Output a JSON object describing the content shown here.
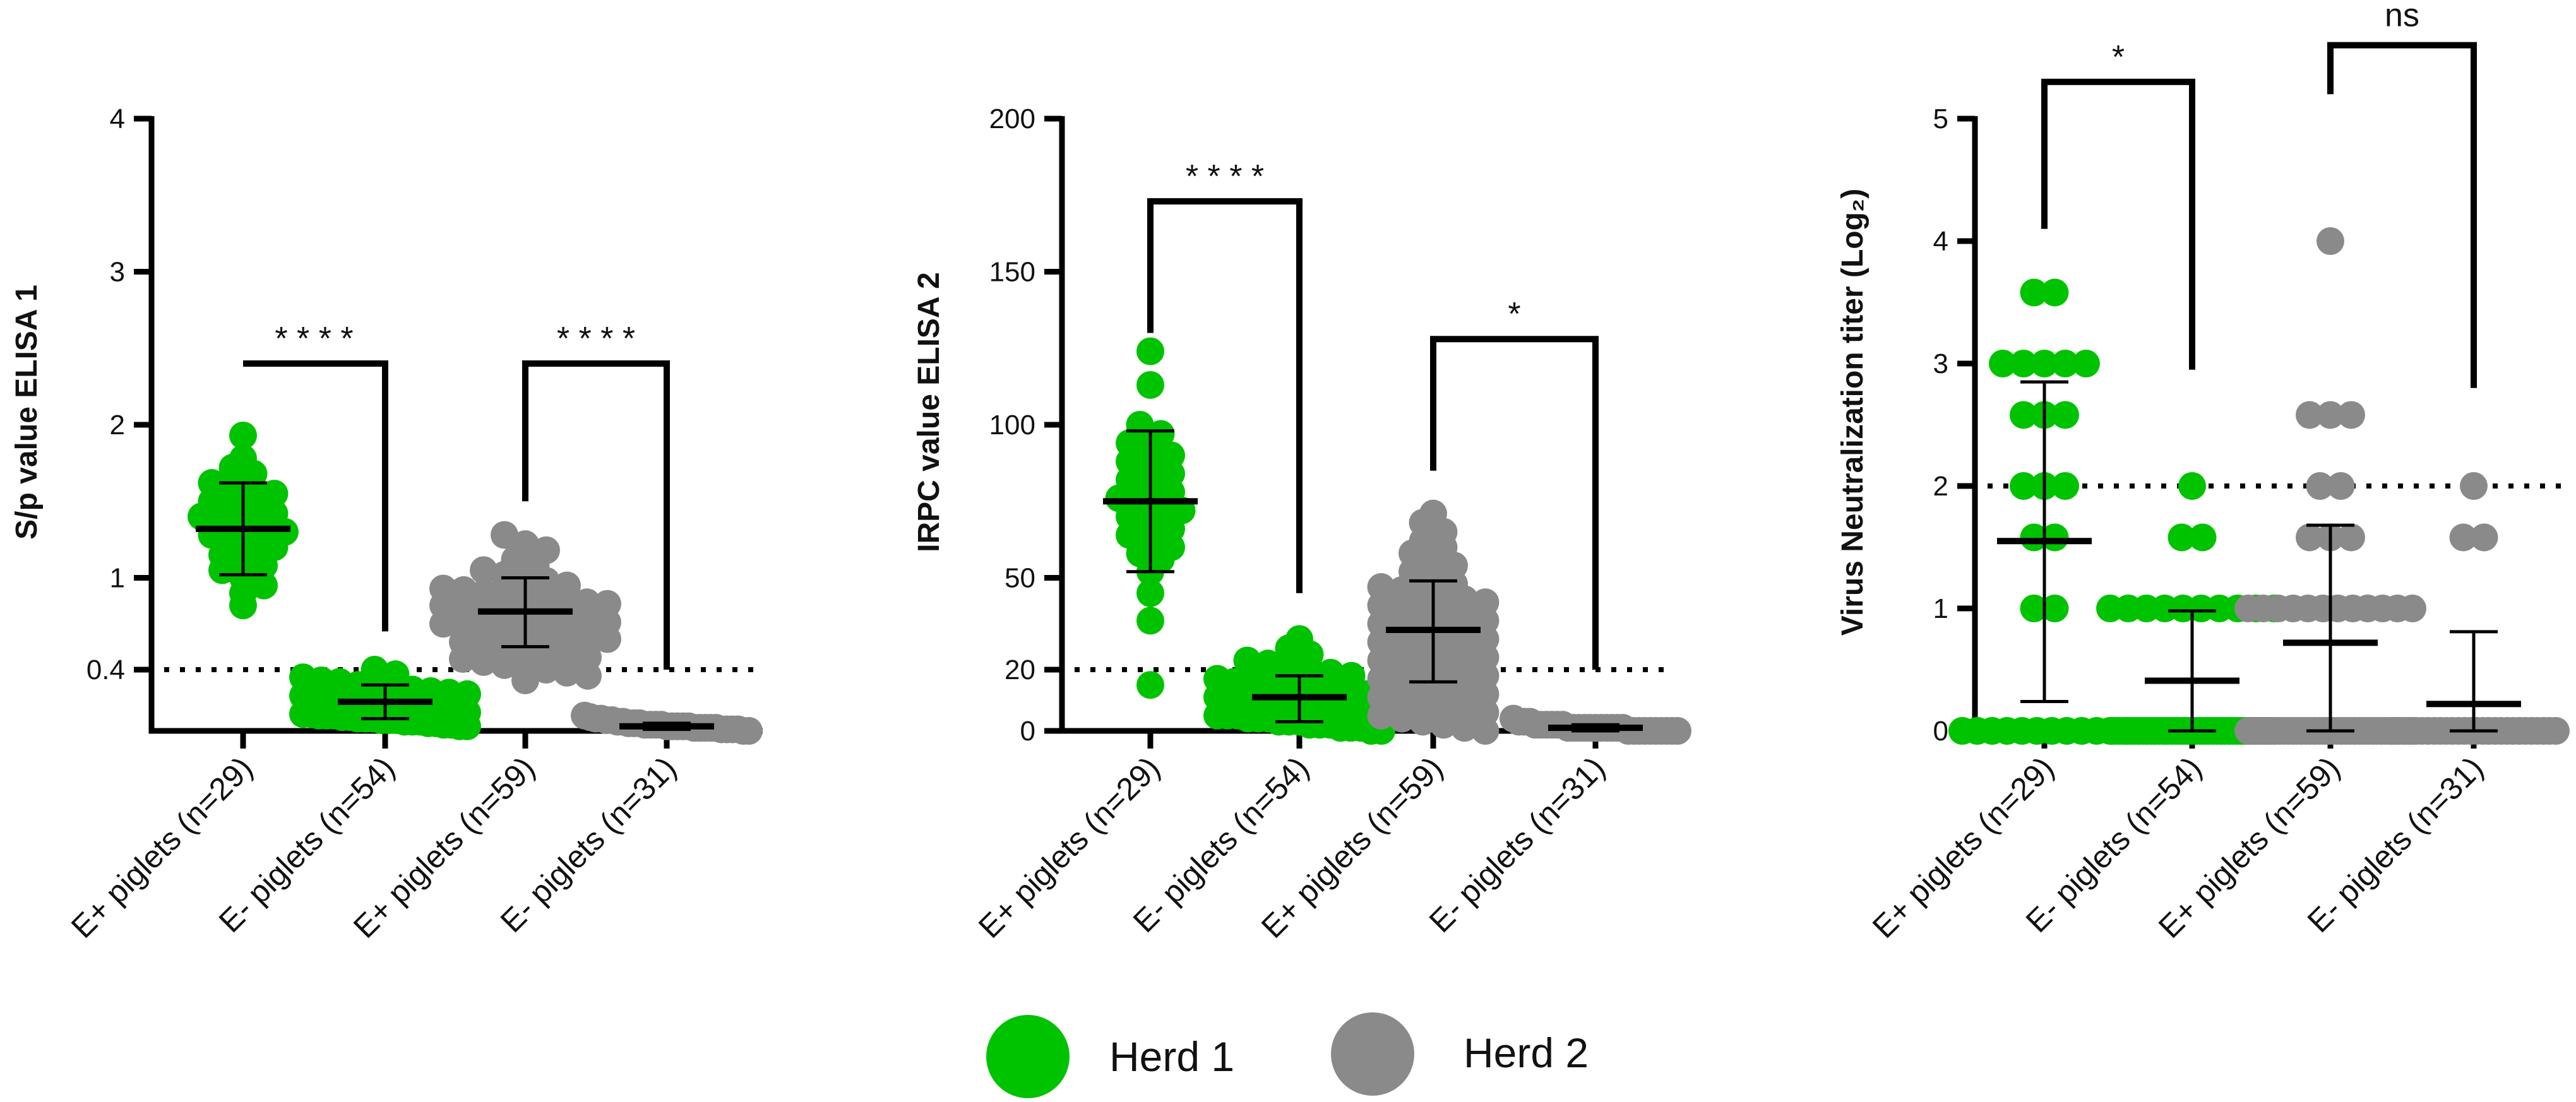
{
  "colors": {
    "herd1": "#00c300",
    "herd2": "#8a8a8a",
    "axis": "#000000"
  },
  "legend": [
    {
      "name": "Herd 1",
      "color": "#00c300"
    },
    {
      "name": "Herd 2",
      "color": "#8a8a8a"
    }
  ],
  "chart_data": [
    {
      "type": "scatter",
      "ylabel": "S/p value ELISA 1",
      "ylim": [
        0,
        4
      ],
      "yticks": [
        0.4,
        1,
        2,
        3,
        4
      ],
      "ytick_labels": [
        "0.4",
        "1",
        "2",
        "3",
        "4"
      ],
      "threshold": 0.4,
      "categories": [
        "E+ piglets (n=29)",
        "E- piglets (n=54)",
        "E+ piglets (n=59)",
        "E- piglets (n=31)"
      ],
      "herds": [
        "Herd 1",
        "Herd 1",
        "Herd 2",
        "Herd 2"
      ],
      "means": [
        1.32,
        0.19,
        0.78,
        0.03
      ],
      "sd": [
        [
          1.02,
          1.62
        ],
        [
          0.08,
          0.3
        ],
        [
          0.55,
          1.0
        ],
        [
          0.01,
          0.05
        ]
      ],
      "points": [
        [
          1.93,
          1.78,
          1.72,
          1.68,
          1.62,
          1.6,
          1.56,
          1.55,
          1.5,
          1.48,
          1.45,
          1.42,
          1.4,
          1.38,
          1.35,
          1.33,
          1.3,
          1.28,
          1.25,
          1.22,
          1.2,
          1.15,
          1.12,
          1.08,
          1.05,
          1.0,
          0.95,
          0.9,
          0.82
        ],
        [
          0.4,
          0.37,
          0.35,
          0.33,
          0.32,
          0.3,
          0.29,
          0.28,
          0.27,
          0.26,
          0.25,
          0.24,
          0.23,
          0.22,
          0.22,
          0.21,
          0.2,
          0.2,
          0.19,
          0.18,
          0.18,
          0.17,
          0.16,
          0.16,
          0.15,
          0.15,
          0.14,
          0.14,
          0.13,
          0.13,
          0.12,
          0.12,
          0.11,
          0.11,
          0.1,
          0.1,
          0.1,
          0.09,
          0.09,
          0.08,
          0.08,
          0.08,
          0.07,
          0.07,
          0.07,
          0.06,
          0.06,
          0.06,
          0.05,
          0.05,
          0.04,
          0.04,
          0.03,
          0.03
        ],
        [
          1.28,
          1.22,
          1.18,
          1.12,
          1.08,
          1.05,
          1.02,
          1.0,
          0.98,
          0.95,
          0.93,
          0.92,
          0.9,
          0.88,
          0.87,
          0.86,
          0.85,
          0.84,
          0.83,
          0.82,
          0.81,
          0.8,
          0.79,
          0.78,
          0.78,
          0.77,
          0.76,
          0.75,
          0.75,
          0.74,
          0.73,
          0.72,
          0.71,
          0.7,
          0.69,
          0.68,
          0.67,
          0.66,
          0.65,
          0.64,
          0.63,
          0.62,
          0.61,
          0.6,
          0.58,
          0.57,
          0.55,
          0.53,
          0.52,
          0.5,
          0.48,
          0.47,
          0.45,
          0.43,
          0.42,
          0.4,
          0.38,
          0.36,
          0.33
        ],
        [
          0.1,
          0.09,
          0.08,
          0.08,
          0.07,
          0.07,
          0.06,
          0.06,
          0.05,
          0.05,
          0.05,
          0.04,
          0.04,
          0.04,
          0.04,
          0.03,
          0.03,
          0.03,
          0.03,
          0.03,
          0.02,
          0.02,
          0.02,
          0.02,
          0.02,
          0.01,
          0.01,
          0.01,
          0.01,
          0.0,
          0.0
        ]
      ],
      "comparisons": [
        {
          "from": 0,
          "to": 1,
          "label": "****",
          "y": 2.4,
          "ends": [
            2.4,
            0.65
          ]
        },
        {
          "from": 2,
          "to": 3,
          "label": "****",
          "y": 2.4,
          "ends": [
            1.5,
            0.4
          ]
        }
      ]
    },
    {
      "type": "scatter",
      "ylabel": "IRPC value ELISA 2",
      "ylim": [
        0,
        200
      ],
      "yticks": [
        0,
        20,
        50,
        100,
        150,
        200
      ],
      "ytick_labels": [
        "0",
        "20",
        "50",
        "100",
        "150",
        "200"
      ],
      "threshold": 20,
      "categories": [
        "E+ piglets (n=29)",
        "E- piglets (n=54)",
        "E+ piglets (n=59)",
        "E- piglets (n=31)"
      ],
      "herds": [
        "Herd 1",
        "Herd 1",
        "Herd 2",
        "Herd 2"
      ],
      "means": [
        75,
        11,
        33,
        1
      ],
      "sd": [
        [
          52,
          98
        ],
        [
          3,
          18
        ],
        [
          16,
          49
        ],
        [
          0,
          2
        ]
      ],
      "points": [
        [
          124,
          113,
          100,
          97,
          94,
          92,
          90,
          88,
          86,
          84,
          82,
          80,
          78,
          76,
          75,
          74,
          72,
          70,
          68,
          66,
          64,
          62,
          60,
          58,
          56,
          52,
          45,
          36,
          15
        ],
        [
          30,
          27,
          25,
          23,
          22,
          21,
          20,
          19,
          18,
          17,
          16,
          16,
          15,
          15,
          14,
          14,
          13,
          13,
          12,
          12,
          11,
          11,
          10,
          10,
          10,
          9,
          9,
          9,
          8,
          8,
          8,
          7,
          7,
          7,
          6,
          6,
          6,
          5,
          5,
          5,
          4,
          4,
          4,
          3,
          3,
          3,
          2,
          2,
          2,
          1,
          1,
          1,
          0,
          0
        ],
        [
          71,
          68,
          65,
          62,
          60,
          58,
          56,
          54,
          52,
          50,
          48,
          47,
          46,
          45,
          44,
          43,
          42,
          41,
          40,
          39,
          38,
          37,
          36,
          35,
          34,
          33,
          32,
          31,
          30,
          29,
          28,
          27,
          26,
          25,
          24,
          23,
          22,
          21,
          20,
          19,
          18,
          17,
          16,
          15,
          14,
          13,
          12,
          11,
          10,
          9,
          8,
          7,
          6,
          5,
          4,
          3,
          2,
          1,
          0
        ],
        [
          4,
          3,
          3,
          3,
          2,
          2,
          2,
          2,
          2,
          2,
          1,
          1,
          1,
          1,
          1,
          1,
          1,
          1,
          1,
          1,
          1,
          0,
          0,
          0,
          0,
          0,
          0,
          0,
          0,
          0,
          0
        ]
      ],
      "comparisons": [
        {
          "from": 0,
          "to": 1,
          "label": "****",
          "y": 173,
          "ends": [
            130,
            45
          ]
        },
        {
          "from": 2,
          "to": 3,
          "label": "*",
          "y": 128,
          "ends": [
            85,
            20
          ]
        }
      ]
    },
    {
      "type": "scatter",
      "ylabel": "Virus Neutralization titer (Log₂)",
      "ylim": [
        0,
        5
      ],
      "yticks": [
        0,
        1,
        2,
        3,
        4,
        5
      ],
      "ytick_labels": [
        "0",
        "1",
        "2",
        "3",
        "4",
        "5"
      ],
      "threshold": 2,
      "categories": [
        "E+ piglets (n=29)",
        "E- piglets (n=54)",
        "E+ piglets (n=59)",
        "E- piglets (n=31)"
      ],
      "herds": [
        "Herd 1",
        "Herd 1",
        "Herd 2",
        "Herd 2"
      ],
      "means": [
        1.55,
        0.41,
        0.72,
        0.22
      ],
      "sd": [
        [
          0.24,
          2.85
        ],
        [
          0,
          0.98
        ],
        [
          0,
          1.68
        ],
        [
          0,
          0.81
        ]
      ],
      "points": [
        [
          3.58,
          3.58,
          3.0,
          3.0,
          3.0,
          3.0,
          3.0,
          2.58,
          2.58,
          2.58,
          2.0,
          2.0,
          2.0,
          1.58,
          1.58,
          1.0,
          1.0,
          0,
          0,
          0,
          0,
          0,
          0,
          0,
          0,
          0,
          0,
          0,
          0
        ],
        [
          2.0,
          1.58,
          1.58,
          1.0,
          1.0,
          1.0,
          1.0,
          1.0,
          1.0,
          1.0,
          1.0,
          1.0,
          1.0,
          0,
          0,
          0,
          0,
          0,
          0,
          0,
          0,
          0,
          0,
          0,
          0,
          0,
          0,
          0,
          0,
          0,
          0,
          0,
          0,
          0,
          0,
          0,
          0,
          0,
          0,
          0,
          0,
          0,
          0,
          0,
          0,
          0,
          0,
          0,
          0,
          0,
          0,
          0,
          0,
          0
        ],
        [
          4.0,
          2.58,
          2.58,
          2.58,
          2.0,
          2.0,
          1.58,
          1.58,
          1.58,
          1.0,
          1.0,
          1.0,
          1.0,
          1.0,
          1.0,
          1.0,
          1.0,
          1.0,
          1.0,
          1.0,
          1.0,
          0,
          0,
          0,
          0,
          0,
          0,
          0,
          0,
          0,
          0,
          0,
          0,
          0,
          0,
          0,
          0,
          0,
          0,
          0,
          0,
          0,
          0,
          0,
          0,
          0,
          0,
          0,
          0,
          0,
          0,
          0,
          0,
          0,
          0,
          0,
          0,
          0,
          0
        ],
        [
          2.0,
          1.58,
          1.58,
          0,
          0,
          0,
          0,
          0,
          0,
          0,
          0,
          0,
          0,
          0,
          0,
          0,
          0,
          0,
          0,
          0,
          0,
          0,
          0,
          0,
          0,
          0,
          0,
          0,
          0,
          0,
          0
        ]
      ],
      "comparisons": [
        {
          "from": 0,
          "to": 1,
          "label": "*",
          "y": 5.3,
          "ends": [
            4.1,
            2.95
          ]
        },
        {
          "from": 2,
          "to": 3,
          "label": "ns",
          "y": 5.6,
          "ends": [
            5.2,
            2.8
          ]
        }
      ]
    }
  ]
}
